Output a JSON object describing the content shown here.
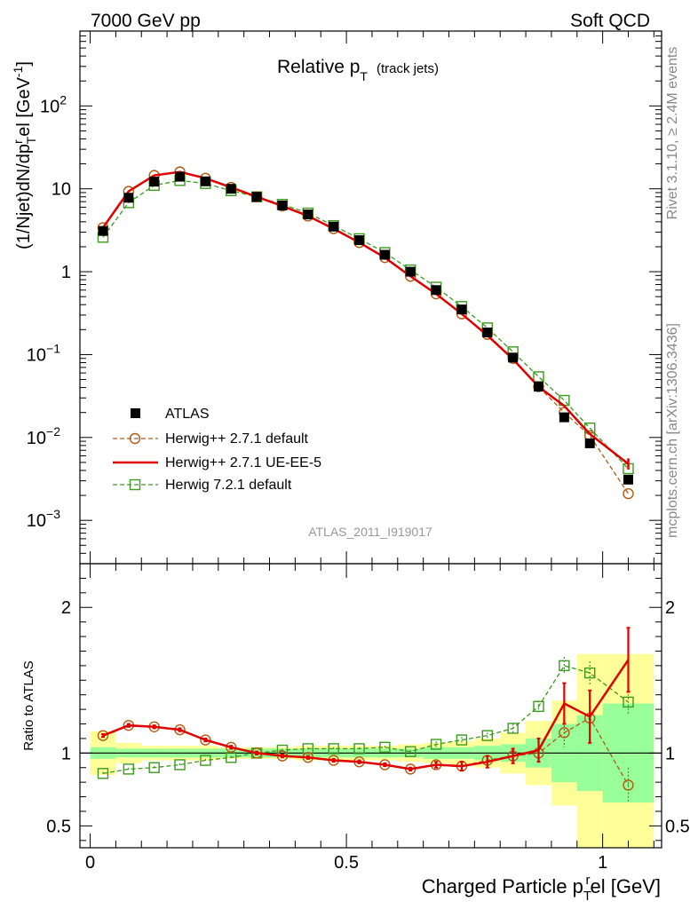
{
  "header": {
    "energy_label": "7000 GeV pp",
    "process_label": "Soft QCD"
  },
  "side": {
    "rivet_label": "Rivet 3.1.10, ≥ 2.4M events",
    "source_label": "mcplots.cern.ch [arXiv:1306.3436]"
  },
  "analysis_id": "ATLAS_2011_I919017",
  "colors": {
    "data": "#000000",
    "herwigpp_default": "#b05a10",
    "herwigpp_ueee5": "#e00000",
    "herwig7_default": "#3c9a1e",
    "band_inner": "#99ff99",
    "band_outer": "#ffff99"
  },
  "chart_data": [
    {
      "type": "line",
      "panel": "main",
      "title": "Relative p_T",
      "title_main": "Relative p",
      "title_sub": "T",
      "title_suffix": "(track jets)",
      "ylabel": "(1/Njet)dN/dp_T^rel [GeV^-1]",
      "yscale": "log",
      "ylim": [
        0.0003,
        800
      ],
      "xlim": [
        -0.02,
        1.115
      ],
      "y_ticks": [
        {
          "value": 0.001,
          "base": "10",
          "exp": "−3"
        },
        {
          "value": 0.01,
          "base": "10",
          "exp": "−2"
        },
        {
          "value": 0.1,
          "base": "10",
          "exp": "−1"
        },
        {
          "value": 1,
          "base": "1",
          "exp": ""
        },
        {
          "value": 10,
          "base": "10",
          "exp": ""
        },
        {
          "value": 100,
          "base": "10",
          "exp": "2"
        }
      ],
      "x": [
        0.025,
        0.075,
        0.125,
        0.175,
        0.225,
        0.275,
        0.325,
        0.375,
        0.425,
        0.475,
        0.525,
        0.575,
        0.625,
        0.675,
        0.725,
        0.775,
        0.825,
        0.875,
        0.925,
        0.975,
        1.05
      ],
      "series": [
        {
          "name": "ATLAS",
          "key": "data",
          "values": [
            3.1,
            7.8,
            12.2,
            14.0,
            12.3,
            10.0,
            8.0,
            6.3,
            4.9,
            3.5,
            2.4,
            1.6,
            1.0,
            0.6,
            0.35,
            0.185,
            0.092,
            0.041,
            0.0175,
            0.0085,
            0.0031
          ]
        },
        {
          "name": "Herwig++ 2.7.1 default",
          "key": "herwigpp_default",
          "values": [
            3.4,
            9.3,
            14.5,
            16.0,
            13.4,
            10.4,
            8.0,
            6.2,
            4.7,
            3.3,
            2.25,
            1.48,
            0.88,
            0.54,
            0.31,
            0.175,
            0.09,
            0.041,
            0.02,
            0.0105,
            0.0021
          ]
        },
        {
          "name": "Herwig++ 2.7.1 UE-EE-5",
          "key": "herwigpp_ueee5",
          "values": [
            3.4,
            9.3,
            14.5,
            16.0,
            13.4,
            10.4,
            8.0,
            6.2,
            4.7,
            3.3,
            2.25,
            1.48,
            0.88,
            0.54,
            0.31,
            0.17,
            0.088,
            0.041,
            0.024,
            0.011,
            0.0048
          ]
        },
        {
          "name": "Herwig 7.2.1 default",
          "key": "herwig7_default",
          "values": [
            2.6,
            6.8,
            11.0,
            12.6,
            11.6,
            9.5,
            8.0,
            6.5,
            5.1,
            3.6,
            2.5,
            1.7,
            1.05,
            0.65,
            0.38,
            0.21,
            0.108,
            0.054,
            0.028,
            0.013,
            0.0042
          ]
        }
      ],
      "legend": [
        "ATLAS",
        "Herwig++ 2.7.1 default",
        "Herwig++ 2.7.1 UE-EE-5",
        "Herwig 7.2.1 default"
      ]
    },
    {
      "type": "line",
      "panel": "ratio",
      "ylabel": "Ratio to ATLAS",
      "xlabel": "Charged Particle p_T^rel [GeV]",
      "xlabel_main": "Charged Particle p",
      "xlabel_sub": "T",
      "xlabel_sup": "r",
      "xlabel_suffix": "el [GeV]",
      "ylim": [
        0.35,
        2.3
      ],
      "xlim": [
        -0.02,
        1.115
      ],
      "y_ticks": [
        {
          "value": 0.5,
          "label": "0.5"
        },
        {
          "value": 1,
          "label": "1"
        },
        {
          "value": 2,
          "label": "2"
        }
      ],
      "x_ticks": [
        {
          "value": 0,
          "label": "0"
        },
        {
          "value": 0.5,
          "label": "0.5"
        },
        {
          "value": 1,
          "label": "1"
        }
      ],
      "bins": [
        [
          0.0,
          0.05
        ],
        [
          0.05,
          0.1
        ],
        [
          0.1,
          0.15
        ],
        [
          0.15,
          0.2
        ],
        [
          0.2,
          0.25
        ],
        [
          0.25,
          0.3
        ],
        [
          0.3,
          0.35
        ],
        [
          0.35,
          0.4
        ],
        [
          0.4,
          0.45
        ],
        [
          0.45,
          0.5
        ],
        [
          0.5,
          0.55
        ],
        [
          0.55,
          0.6
        ],
        [
          0.6,
          0.65
        ],
        [
          0.65,
          0.7
        ],
        [
          0.7,
          0.75
        ],
        [
          0.75,
          0.8
        ],
        [
          0.8,
          0.85
        ],
        [
          0.85,
          0.9
        ],
        [
          0.9,
          0.95
        ],
        [
          0.95,
          1.0
        ],
        [
          1.0,
          1.1
        ]
      ],
      "band_inner_err": [
        0.04,
        0.03,
        0.03,
        0.03,
        0.03,
        0.03,
        0.03,
        0.03,
        0.03,
        0.03,
        0.03,
        0.03,
        0.03,
        0.04,
        0.04,
        0.05,
        0.06,
        0.1,
        0.2,
        0.26,
        0.34
      ],
      "band_outer_err": [
        0.15,
        0.07,
        0.05,
        0.05,
        0.05,
        0.04,
        0.04,
        0.04,
        0.05,
        0.05,
        0.05,
        0.05,
        0.06,
        0.07,
        0.08,
        0.1,
        0.14,
        0.22,
        0.36,
        0.68,
        0.68
      ],
      "x": [
        0.025,
        0.075,
        0.125,
        0.175,
        0.225,
        0.275,
        0.325,
        0.375,
        0.425,
        0.475,
        0.525,
        0.575,
        0.625,
        0.675,
        0.725,
        0.775,
        0.825,
        0.875,
        0.925,
        0.975,
        1.05
      ],
      "series": [
        {
          "name": "Herwig++ 2.7.1 default",
          "key": "herwigpp_default",
          "values": [
            1.12,
            1.19,
            1.18,
            1.16,
            1.09,
            1.04,
            1.0,
            0.98,
            0.97,
            0.95,
            0.94,
            0.92,
            0.89,
            0.92,
            0.91,
            0.95,
            0.98,
            1.0,
            1.14,
            1.24,
            0.78
          ],
          "err": [
            0.01,
            0.01,
            0.01,
            0.01,
            0.01,
            0.01,
            0.01,
            0.01,
            0.01,
            0.01,
            0.01,
            0.01,
            0.01,
            0.02,
            0.02,
            0.03,
            0.04,
            0.06,
            0.1,
            0.12,
            0.12
          ]
        },
        {
          "name": "Herwig++ 2.7.1 UE-EE-5",
          "key": "herwigpp_ueee5",
          "values": [
            1.12,
            1.19,
            1.18,
            1.16,
            1.09,
            1.04,
            1.0,
            0.98,
            0.97,
            0.95,
            0.94,
            0.92,
            0.89,
            0.92,
            0.91,
            0.94,
            0.98,
            1.02,
            1.34,
            1.25,
            1.64
          ],
          "err": [
            0.01,
            0.01,
            0.01,
            0.01,
            0.01,
            0.01,
            0.01,
            0.01,
            0.01,
            0.01,
            0.01,
            0.01,
            0.01,
            0.02,
            0.03,
            0.04,
            0.05,
            0.08,
            0.14,
            0.18,
            0.22
          ]
        },
        {
          "name": "Herwig 7.2.1 default",
          "key": "herwig7_default",
          "values": [
            0.86,
            0.89,
            0.9,
            0.92,
            0.95,
            0.97,
            1.0,
            1.02,
            1.03,
            1.03,
            1.03,
            1.04,
            1.01,
            1.06,
            1.09,
            1.12,
            1.17,
            1.32,
            1.6,
            1.55,
            1.35
          ],
          "err": [
            0.01,
            0.01,
            0.01,
            0.01,
            0.01,
            0.01,
            0.01,
            0.01,
            0.01,
            0.01,
            0.01,
            0.01,
            0.01,
            0.02,
            0.02,
            0.02,
            0.03,
            0.04,
            0.06,
            0.08,
            0.08
          ]
        }
      ]
    }
  ]
}
